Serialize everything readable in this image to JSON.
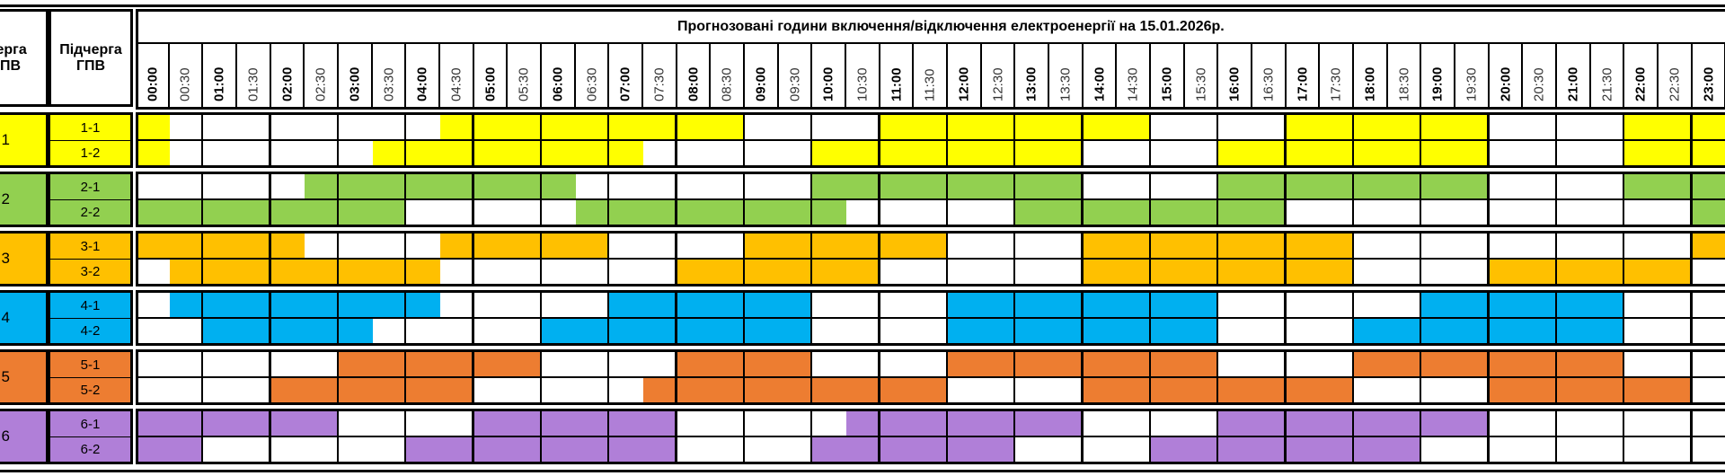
{
  "header": {
    "group_col": "Черга ГПВ",
    "subgroup_col": "Підчерга ГПВ",
    "title": "Прогнозовані години включення/відключення електроенергії на 15.01.2026р."
  },
  "times": [
    "00:00",
    "00:30",
    "01:00",
    "01:30",
    "02:00",
    "02:30",
    "03:00",
    "03:30",
    "04:00",
    "04:30",
    "05:00",
    "05:30",
    "06:00",
    "06:30",
    "07:00",
    "07:30",
    "08:00",
    "08:30",
    "09:00",
    "09:30",
    "10:00",
    "10:30",
    "11:00",
    "11:30",
    "12:00",
    "12:30",
    "13:00",
    "13:30",
    "14:00",
    "14:30",
    "15:00",
    "15:30",
    "16:00",
    "16:30",
    "17:00",
    "17:30",
    "18:00",
    "18:30",
    "19:00",
    "19:30",
    "20:00",
    "20:30",
    "21:00",
    "21:30",
    "22:00",
    "22:30",
    "23:00"
  ],
  "groups": [
    {
      "label": "1",
      "color": "#FFFF00",
      "subs": [
        {
          "label": "1-1",
          "slots": "10000000011111111100001111111100001111110000111"
        },
        {
          "label": "1-2",
          "slots": "10000001111111100000111111110000111111110000111"
        }
      ]
    },
    {
      "label": "2",
      "color": "#92D050",
      "subs": [
        {
          "label": "2-1",
          "slots": "00000111111110000000111111110000111111110000111"
        },
        {
          "label": "2-2",
          "slots": "11111111000001111111100000111111110000000000001"
        }
      ]
    },
    {
      "label": "3",
      "color": "#FFC000",
      "subs": [
        {
          "label": "3-1",
          "slots": "11111000011111000011111100001111111100000000001"
        },
        {
          "label": "3-2",
          "slots": "01111111100000001111110000001111111100001111110"
        }
      ]
    },
    {
      "label": "4",
      "color": "#00B0F0",
      "subs": [
        {
          "label": "4-1",
          "slots": "01111111100000111111000011111111000000111111000"
        },
        {
          "label": "4-2",
          "slots": "00111110000011111111000011111111000011111111000"
        }
      ]
    },
    {
      "label": "5",
      "color": "#ED7D31",
      "subs": [
        {
          "label": "5-1",
          "slots": "00000011111100001111000011111111000011111111000"
        },
        {
          "label": "5-2",
          "slots": "00001111110000011111111100001111111100001111110"
        }
      ]
    },
    {
      "label": "6",
      "color": "#B07FD8",
      "subs": [
        {
          "label": "6-1",
          "slots": "11111100001111110000011111110000111111110000000"
        },
        {
          "label": "6-2",
          "slots": "11000000111111110000111111000011111111000000000"
        }
      ]
    }
  ]
}
